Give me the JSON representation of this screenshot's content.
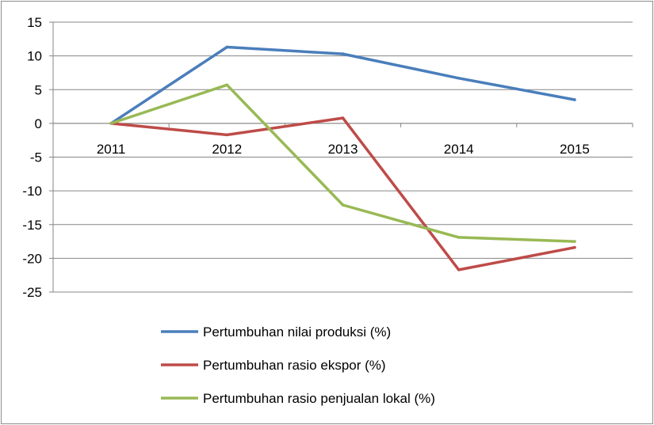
{
  "chart_data": {
    "type": "line",
    "title": "",
    "xlabel": "",
    "ylabel": "",
    "categories": [
      "2011",
      "2012",
      "2013",
      "2014",
      "2015"
    ],
    "ylim": [
      -25,
      15
    ],
    "yticks": [
      "15",
      "10",
      "5",
      "0",
      "-5",
      "-10",
      "-15",
      "-20",
      "-25"
    ],
    "grid": true,
    "legend_position": "bottom",
    "series": [
      {
        "name": "Pertumbuhan nilai produksi (%)",
        "color": "#4a7ebb",
        "values": [
          0,
          11.3,
          10.3,
          6.7,
          3.5
        ]
      },
      {
        "name": "Pertumbuhan rasio ekspor (%)",
        "color": "#be4b48",
        "values": [
          0,
          -1.7,
          0.8,
          -21.7,
          -18.4
        ]
      },
      {
        "name": "Pertumbuhan rasio penjualan lokal (%)",
        "color": "#98b954",
        "values": [
          0,
          5.7,
          -12.1,
          -16.9,
          -17.5
        ]
      }
    ]
  }
}
